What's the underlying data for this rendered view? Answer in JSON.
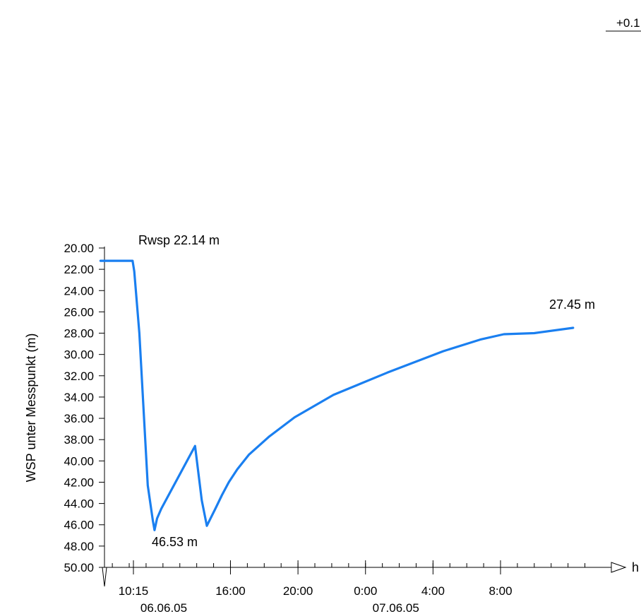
{
  "chart_data": {
    "type": "line",
    "title": "",
    "ylabel": "WSP unter Messpunkt (m)",
    "xlabel": "h",
    "y_inverted": true,
    "ylim": [
      20.0,
      50.0
    ],
    "y_ticks": [
      "20.00",
      "22.00",
      "24.00",
      "26.00",
      "28.00",
      "30.00",
      "32.00",
      "34.00",
      "36.00",
      "38.00",
      "40.00",
      "42.00",
      "44.00",
      "46.00",
      "48.00",
      "50.00"
    ],
    "x_ticks": [
      {
        "label": "10:15",
        "date": "06.06.05",
        "hours": 10.25
      },
      {
        "label": "16:00",
        "hours": 16
      },
      {
        "label": "20:00",
        "hours": 20
      },
      {
        "label": "0:00",
        "date": "07.06.05",
        "hours": 24
      },
      {
        "label": "4:00",
        "hours": 28
      },
      {
        "label": "8:00",
        "hours": 32
      }
    ],
    "x_unit": "hours from 00:00 on 06.06.05",
    "grid": false,
    "series": [
      {
        "color": "#1a7ff0",
        "points": [
          [
            8.3,
            21.2
          ],
          [
            10.2,
            21.2
          ],
          [
            10.3,
            22.2
          ],
          [
            10.6,
            28.0
          ],
          [
            11.1,
            42.3
          ],
          [
            11.4,
            45.6
          ],
          [
            11.5,
            46.5
          ],
          [
            11.65,
            45.4
          ],
          [
            11.9,
            44.5
          ],
          [
            13.9,
            38.6
          ],
          [
            14.3,
            43.7
          ],
          [
            14.6,
            46.1
          ],
          [
            15.1,
            44.5
          ],
          [
            15.5,
            43.2
          ],
          [
            15.9,
            42.0
          ],
          [
            16.4,
            40.8
          ],
          [
            17.1,
            39.4
          ],
          [
            18.3,
            37.7
          ],
          [
            19.8,
            35.9
          ],
          [
            22.1,
            33.8
          ],
          [
            25.3,
            31.7
          ],
          [
            28.6,
            29.7
          ],
          [
            30.8,
            28.6
          ],
          [
            32.2,
            28.1
          ],
          [
            34.0,
            28.0
          ],
          [
            36.3,
            27.5
          ]
        ]
      }
    ],
    "annotations": {
      "start": "Rwsp 22.14 m",
      "min": "46.53 m",
      "end": "27.45 m",
      "corner": "+0.1"
    }
  }
}
